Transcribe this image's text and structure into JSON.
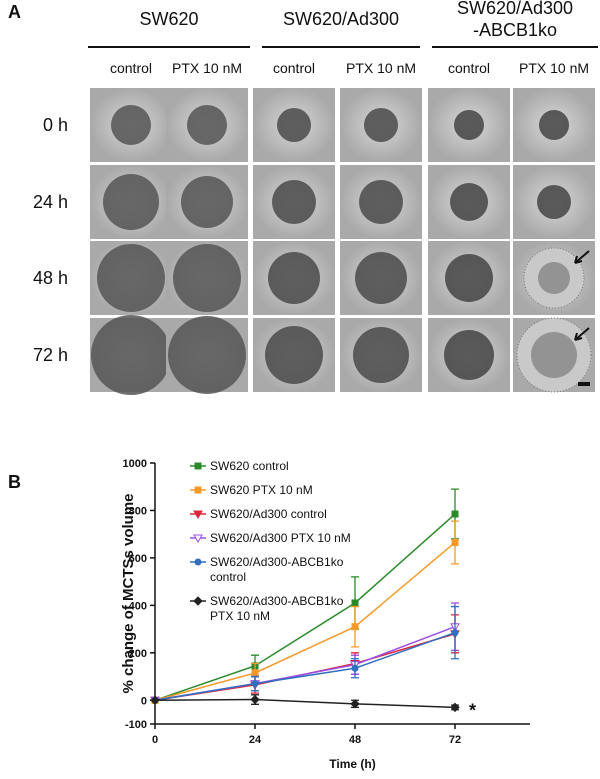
{
  "panel_a": {
    "label": "A",
    "groups": [
      "SW620",
      "SW620/Ad300",
      "SW620/Ad300\n-ABCB1ko"
    ],
    "conditions": [
      "control",
      "PTX 10 nM",
      "control",
      "PTX 10 nM",
      "control",
      "PTX 10 nM"
    ],
    "rows": [
      "0 h",
      "24 h",
      "48 h",
      "72 h"
    ]
  },
  "panel_b": {
    "label": "B"
  },
  "chart_data": {
    "type": "line",
    "x_label": "Time (h)",
    "y_label": "% change of MCTSs volume",
    "x": [
      0,
      24,
      48,
      72
    ],
    "xlim": [
      0,
      90
    ],
    "ylim": [
      -100,
      1000
    ],
    "xticks": [
      0,
      24,
      48,
      72
    ],
    "yticks": [
      -100,
      0,
      200,
      400,
      600,
      800,
      1000
    ],
    "annotation": "*",
    "series": [
      {
        "name": "SW620 control",
        "color": "#2a8a2a",
        "marker": "square",
        "values": [
          0,
          145,
          410,
          785
        ],
        "errors": [
          0,
          45,
          110,
          105
        ]
      },
      {
        "name": "SW620 PTX 10 nM",
        "color": "#f59a2a",
        "marker": "square",
        "values": [
          0,
          115,
          310,
          665
        ],
        "errors": [
          0,
          40,
          85,
          90
        ]
      },
      {
        "name": "SW620/Ad300 control",
        "color": "#e0263a",
        "marker": "triangle-down",
        "values": [
          0,
          65,
          155,
          280
        ],
        "errors": [
          0,
          35,
          45,
          80
        ]
      },
      {
        "name": "SW620/Ad300 PTX 10 nM",
        "color": "#9b4fe8",
        "marker": "triangle-down-open",
        "values": [
          0,
          70,
          150,
          310
        ],
        "errors": [
          0,
          30,
          40,
          100
        ]
      },
      {
        "name": "SW620/Ad300-ABCB1ko\ncontrol",
        "color": "#2f6fc0",
        "marker": "circle",
        "values": [
          0,
          70,
          135,
          285
        ],
        "errors": [
          0,
          30,
          40,
          110
        ]
      },
      {
        "name": "SW620/Ad300-ABCB1ko\nPTX 10 nM",
        "color": "#222222",
        "marker": "diamond",
        "values": [
          0,
          3,
          -15,
          -30
        ],
        "errors": [
          0,
          20,
          15,
          10
        ]
      }
    ]
  }
}
